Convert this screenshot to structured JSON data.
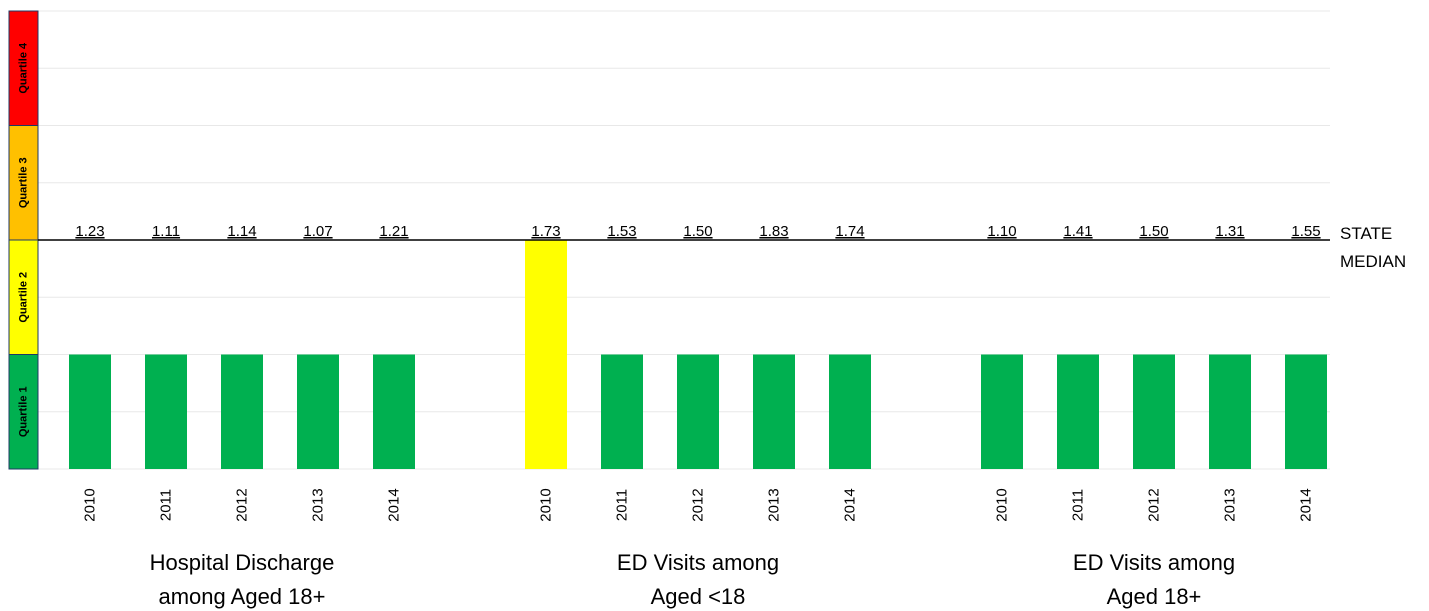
{
  "chart_data": {
    "type": "bar",
    "quartiles": [
      {
        "label": "Quartile 1",
        "color": "#00b050"
      },
      {
        "label": "Quartile 2",
        "color": "#ffff00"
      },
      {
        "label": "Quartile 3",
        "color": "#ffc000"
      },
      {
        "label": "Quartile 4",
        "color": "#ff0000"
      }
    ],
    "median_label_line1": "STATE",
    "median_label_line2": "MEDIAN",
    "groups": [
      {
        "label_line1": "Hospital Discharge",
        "label_line2": "among Aged 18+",
        "years": [
          "2010",
          "2011",
          "2012",
          "2013",
          "2014"
        ],
        "values": [
          "1.23",
          "1.11",
          "1.14",
          "1.07",
          "1.21"
        ],
        "quartile": [
          1,
          1,
          1,
          1,
          1
        ]
      },
      {
        "label_line1": "ED Visits among",
        "label_line2": "Aged <18",
        "years": [
          "2010",
          "2011",
          "2012",
          "2013",
          "2014"
        ],
        "values": [
          "1.73",
          "1.53",
          "1.50",
          "1.83",
          "1.74"
        ],
        "quartile": [
          2,
          1,
          1,
          1,
          1
        ]
      },
      {
        "label_line1": "ED Visits among",
        "label_line2": "Aged 18+",
        "years": [
          "2010",
          "2011",
          "2012",
          "2013",
          "2014"
        ],
        "values": [
          "1.10",
          "1.41",
          "1.50",
          "1.31",
          "1.55"
        ],
        "quartile": [
          1,
          1,
          1,
          1,
          1
        ]
      }
    ],
    "grid": true
  }
}
